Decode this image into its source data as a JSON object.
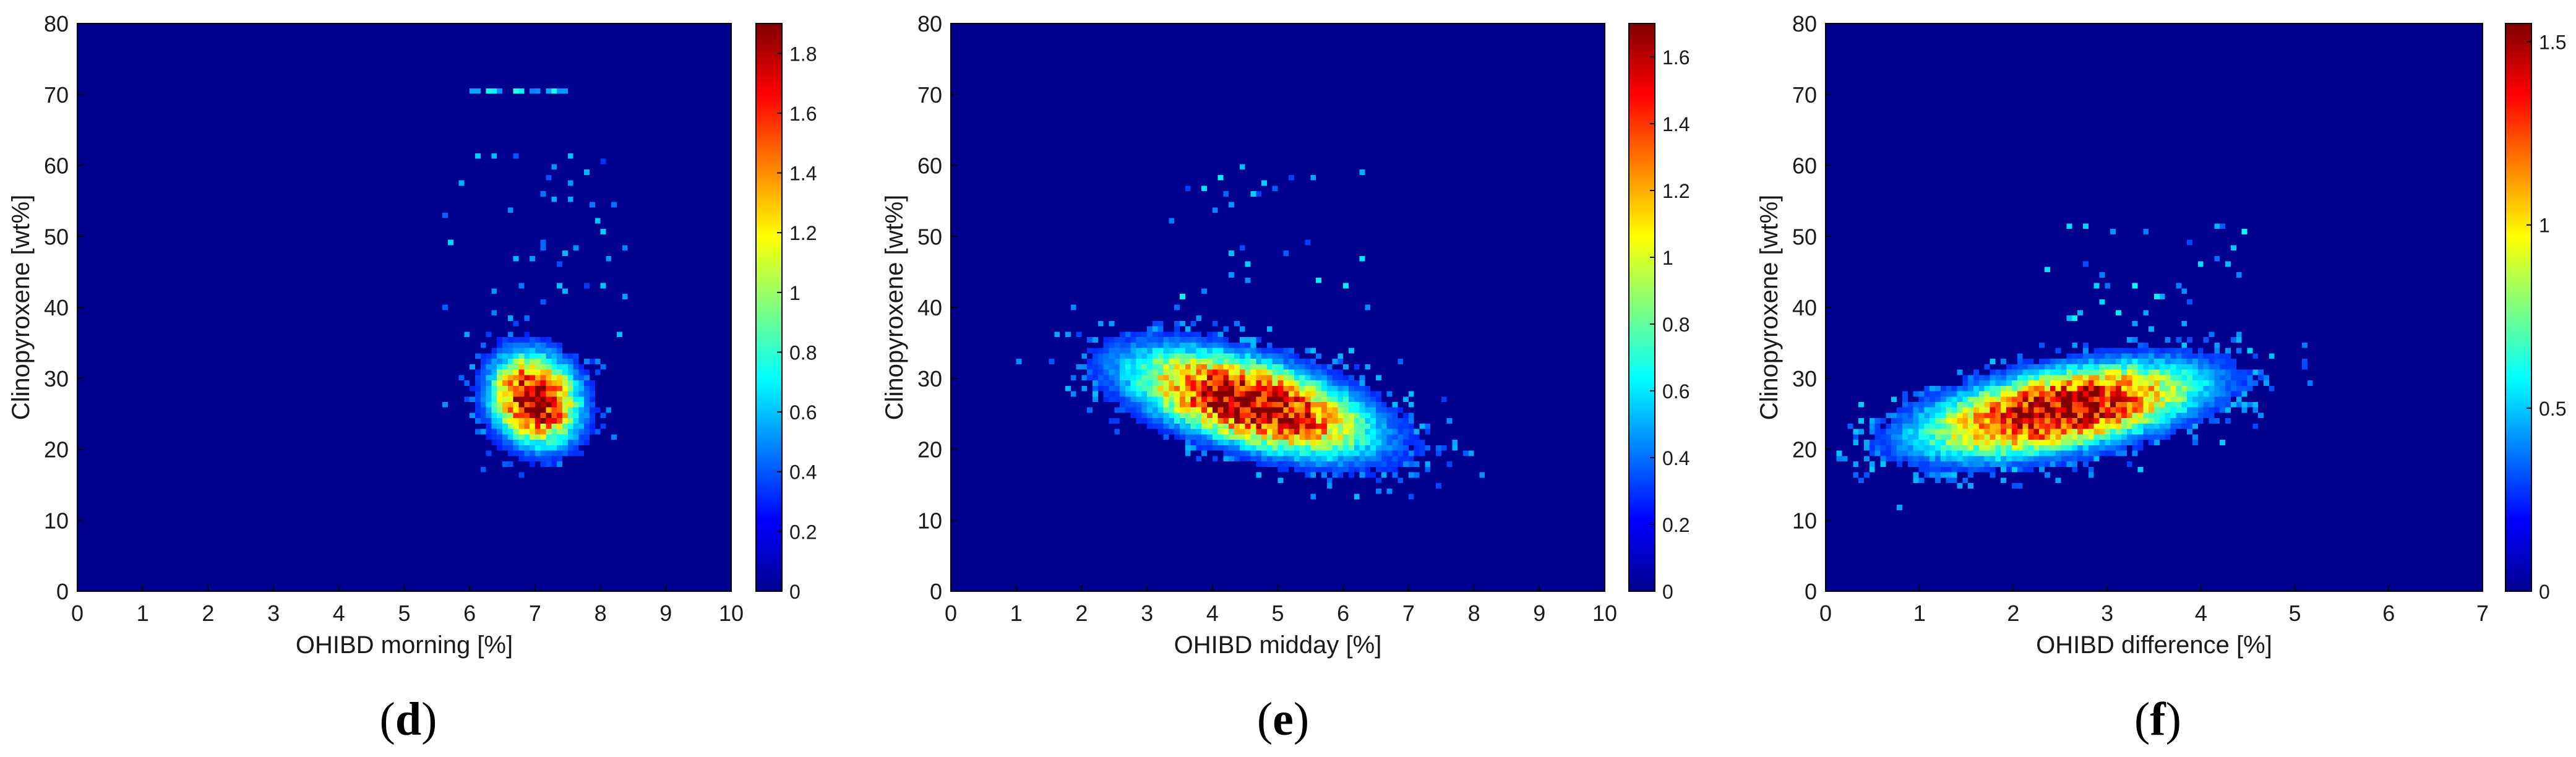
{
  "chart_data": [
    {
      "type": "heatmap",
      "panel_label": "d",
      "xlabel": "OHIBD morning [%]",
      "ylabel": "Clinopyroxene [wt%]",
      "xlim": [
        0,
        10
      ],
      "ylim": [
        0,
        80
      ],
      "xticks": [
        0,
        1,
        2,
        3,
        4,
        5,
        6,
        7,
        8,
        9,
        10
      ],
      "yticks": [
        0,
        10,
        20,
        30,
        40,
        50,
        60,
        70,
        80
      ],
      "colorbar": {
        "min": 0,
        "max": 1.9,
        "ticks": [
          0,
          0.2,
          0.4,
          0.6,
          0.8,
          1,
          1.2,
          1.4,
          1.6,
          1.8
        ],
        "colormap": "jet"
      },
      "background_color": "#00008f",
      "density": {
        "clusters": [
          {
            "cx": 7.0,
            "cy": 27.0,
            "sx": 0.48,
            "sy": 4.6,
            "rho": -0.15,
            "peak": 1.9
          }
        ],
        "streaks": [
          {
            "x_from": 5.9,
            "x_to": 7.6,
            "y": 70.5,
            "value": 0.5
          }
        ],
        "scatter_region": {
          "x_min": 5.6,
          "x_max": 8.5,
          "y_min": 35,
          "y_max": 62
        }
      },
      "grid": false,
      "legend": "none"
    },
    {
      "type": "heatmap",
      "panel_label": "e",
      "xlabel": "OHIBD midday [%]",
      "ylabel": "Clinopyroxene [wt%]",
      "xlim": [
        0,
        10
      ],
      "ylim": [
        0,
        80
      ],
      "xticks": [
        0,
        1,
        2,
        3,
        4,
        5,
        6,
        7,
        8,
        9,
        10
      ],
      "yticks": [
        0,
        10,
        20,
        30,
        40,
        50,
        60,
        70,
        80
      ],
      "colorbar": {
        "min": 0,
        "max": 1.7,
        "ticks": [
          0,
          0.2,
          0.4,
          0.6,
          0.8,
          1,
          1.2,
          1.4,
          1.6
        ],
        "colormap": "jet"
      },
      "background_color": "#00008f",
      "density": {
        "clusters": [
          {
            "cx": 4.6,
            "cy": 26.5,
            "sx": 1.3,
            "sy": 5.2,
            "rho": -0.55,
            "peak": 1.7
          }
        ],
        "streaks": [],
        "scatter_region": {
          "x_min": 3.0,
          "x_max": 6.5,
          "y_min": 40,
          "y_max": 60
        }
      },
      "grid": false,
      "legend": "none"
    },
    {
      "type": "heatmap",
      "panel_label": "f",
      "xlabel": "OHIBD difference [%]",
      "ylabel": "Clinopyroxene [wt%]",
      "xlim": [
        0,
        7
      ],
      "ylim": [
        0,
        80
      ],
      "xticks": [
        0,
        1,
        2,
        3,
        4,
        5,
        6,
        7
      ],
      "yticks": [
        0,
        10,
        20,
        30,
        40,
        50,
        60,
        70,
        80
      ],
      "colorbar": {
        "min": 0,
        "max": 1.55,
        "ticks": [
          0,
          0.5,
          1,
          1.5
        ],
        "colormap": "jet"
      },
      "background_color": "#00008f",
      "density": {
        "clusters": [
          {
            "cx": 2.5,
            "cy": 25.5,
            "sx": 1.05,
            "sy": 4.6,
            "rho": 0.5,
            "peak": 1.55
          }
        ],
        "streaks": [],
        "scatter_region": {
          "x_min": 2.0,
          "x_max": 4.5,
          "y_min": 37,
          "y_max": 52
        }
      },
      "grid": false,
      "legend": "none"
    }
  ]
}
